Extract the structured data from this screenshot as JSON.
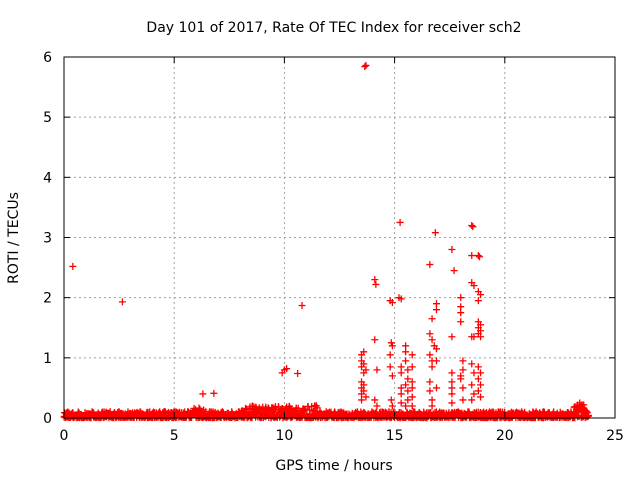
{
  "chart_data": {
    "type": "scatter",
    "title": "Day 101 of 2017, Rate Of TEC Index for receiver sch2",
    "xlabel": "GPS time / hours",
    "ylabel": "ROTI / TECUs",
    "xlim": [
      0,
      25
    ],
    "ylim": [
      0,
      6
    ],
    "xticks": [
      0,
      5,
      10,
      15,
      20,
      25
    ],
    "yticks": [
      0,
      1,
      2,
      3,
      4,
      5,
      6
    ],
    "grid": true,
    "marker": "plus",
    "color": "#ff0000",
    "baseline": {
      "description": "dense band of low ROTI values across the whole day",
      "x_range": [
        0,
        23.8
      ],
      "typical_max": 0.1
    },
    "points": [
      [
        0.4,
        2.52
      ],
      [
        2.65,
        1.93
      ],
      [
        6.3,
        0.4
      ],
      [
        6.8,
        0.41
      ],
      [
        9.9,
        0.75
      ],
      [
        10.0,
        0.8
      ],
      [
        10.1,
        0.82
      ],
      [
        10.6,
        0.74
      ],
      [
        10.8,
        1.87
      ],
      [
        13.65,
        5.84
      ],
      [
        13.7,
        5.86
      ],
      [
        13.5,
        1.05
      ],
      [
        13.5,
        0.95
      ],
      [
        13.5,
        0.85
      ],
      [
        13.5,
        0.6
      ],
      [
        13.5,
        0.5
      ],
      [
        13.5,
        0.4
      ],
      [
        13.5,
        0.3
      ],
      [
        13.6,
        1.1
      ],
      [
        13.6,
        0.9
      ],
      [
        13.6,
        0.75
      ],
      [
        13.6,
        0.55
      ],
      [
        13.6,
        0.45
      ],
      [
        13.7,
        0.8
      ],
      [
        13.7,
        0.35
      ],
      [
        14.1,
        2.3
      ],
      [
        14.15,
        2.22
      ],
      [
        14.1,
        1.3
      ],
      [
        14.2,
        0.8
      ],
      [
        14.1,
        0.3
      ],
      [
        14.2,
        0.2
      ],
      [
        14.8,
        1.95
      ],
      [
        14.9,
        1.92
      ],
      [
        14.85,
        1.25
      ],
      [
        14.9,
        1.2
      ],
      [
        14.8,
        1.05
      ],
      [
        14.8,
        0.85
      ],
      [
        14.9,
        0.7
      ],
      [
        14.85,
        0.3
      ],
      [
        14.9,
        0.2
      ],
      [
        15.25,
        3.25
      ],
      [
        15.2,
        2.0
      ],
      [
        15.3,
        1.98
      ],
      [
        15.3,
        0.85
      ],
      [
        15.3,
        0.75
      ],
      [
        15.3,
        0.5
      ],
      [
        15.3,
        0.4
      ],
      [
        15.3,
        0.25
      ],
      [
        15.5,
        1.2
      ],
      [
        15.5,
        1.1
      ],
      [
        15.5,
        0.95
      ],
      [
        15.6,
        0.8
      ],
      [
        15.6,
        0.65
      ],
      [
        15.5,
        0.55
      ],
      [
        15.6,
        0.45
      ],
      [
        15.6,
        0.3
      ],
      [
        15.5,
        0.2
      ],
      [
        15.8,
        1.05
      ],
      [
        15.8,
        0.85
      ],
      [
        15.8,
        0.6
      ],
      [
        15.8,
        0.5
      ],
      [
        15.8,
        0.35
      ],
      [
        15.8,
        0.2
      ],
      [
        16.6,
        2.55
      ],
      [
        16.7,
        1.65
      ],
      [
        16.6,
        1.4
      ],
      [
        16.7,
        1.3
      ],
      [
        16.8,
        1.2
      ],
      [
        16.6,
        1.05
      ],
      [
        16.7,
        0.95
      ],
      [
        16.7,
        0.85
      ],
      [
        16.6,
        0.6
      ],
      [
        16.6,
        0.45
      ],
      [
        16.7,
        0.3
      ],
      [
        16.7,
        0.2
      ],
      [
        16.85,
        3.08
      ],
      [
        16.9,
        1.9
      ],
      [
        16.9,
        1.8
      ],
      [
        16.9,
        1.15
      ],
      [
        16.9,
        0.95
      ],
      [
        16.9,
        0.5
      ],
      [
        17.6,
        2.8
      ],
      [
        17.7,
        2.45
      ],
      [
        17.6,
        1.35
      ],
      [
        17.6,
        0.75
      ],
      [
        17.6,
        0.6
      ],
      [
        17.6,
        0.5
      ],
      [
        17.6,
        0.4
      ],
      [
        17.6,
        0.25
      ],
      [
        18.0,
        2.0
      ],
      [
        18.0,
        1.85
      ],
      [
        18.0,
        1.75
      ],
      [
        18.0,
        1.6
      ],
      [
        18.1,
        0.95
      ],
      [
        18.1,
        0.8
      ],
      [
        18.0,
        0.7
      ],
      [
        18.0,
        0.65
      ],
      [
        18.1,
        0.5
      ],
      [
        18.1,
        0.3
      ],
      [
        18.5,
        3.2
      ],
      [
        18.55,
        3.18
      ],
      [
        18.5,
        2.7
      ],
      [
        18.5,
        2.25
      ],
      [
        18.6,
        2.2
      ],
      [
        18.5,
        1.35
      ],
      [
        18.6,
        1.35
      ],
      [
        18.5,
        0.9
      ],
      [
        18.6,
        0.75
      ],
      [
        18.5,
        0.55
      ],
      [
        18.6,
        0.4
      ],
      [
        18.5,
        0.3
      ],
      [
        18.8,
        2.7
      ],
      [
        18.85,
        2.68
      ],
      [
        18.8,
        2.1
      ],
      [
        18.9,
        2.05
      ],
      [
        18.8,
        1.95
      ],
      [
        18.8,
        1.6
      ],
      [
        18.9,
        1.55
      ],
      [
        18.8,
        1.5
      ],
      [
        18.9,
        1.45
      ],
      [
        18.8,
        1.4
      ],
      [
        18.9,
        1.35
      ],
      [
        18.8,
        0.85
      ],
      [
        18.9,
        0.75
      ],
      [
        18.8,
        0.65
      ],
      [
        18.9,
        0.55
      ],
      [
        18.8,
        0.45
      ],
      [
        18.9,
        0.35
      ],
      [
        23.4,
        0.25
      ],
      [
        23.5,
        0.22
      ],
      [
        23.3,
        0.18
      ],
      [
        23.6,
        0.15
      ]
    ]
  }
}
